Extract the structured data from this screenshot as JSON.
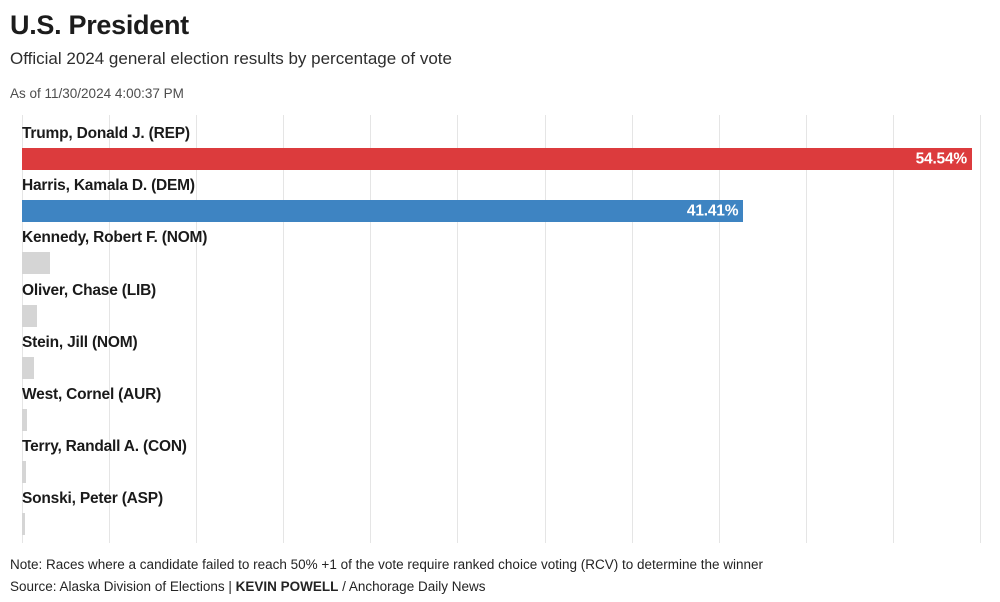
{
  "header": {
    "title": "U.S. President",
    "subtitle": "Official 2024 general election results by percentage of vote",
    "timestamp": "As of 11/30/2024 4:00:37 PM"
  },
  "chart_data": {
    "type": "bar",
    "orientation": "horizontal",
    "title": "U.S. President",
    "subtitle": "Official 2024 general election results by percentage of vote",
    "axis_max": 55,
    "gridline_interval": 5,
    "grid": "vertical-lines-on",
    "legend": "none",
    "categories": [
      "Trump, Donald J. (REP)",
      "Harris, Kamala D. (DEM)",
      "Kennedy, Robert F. (NOM)",
      "Oliver, Chase (LIB)",
      "Stein, Jill (NOM)",
      "West, Cornel (AUR)",
      "Terry, Randall A. (CON)",
      "Sonski, Peter (ASP)"
    ],
    "values": [
      54.54,
      41.41,
      1.6,
      0.86,
      0.67,
      0.27,
      0.21,
      0.17
    ],
    "bar_labels": [
      "54.54%",
      "41.41%",
      "",
      "",
      "",
      "",
      "",
      ""
    ],
    "colors": [
      "#dc3b3d",
      "#3e84c2",
      "#d5d5d5",
      "#d5d5d5",
      "#d5d5d5",
      "#d5d5d5",
      "#d5d5d5",
      "#d5d5d5"
    ]
  },
  "footer": {
    "note": "Note: Races where a candidate failed to reach 50% +1 of the vote require ranked choice voting (RCV) to determine the winner",
    "source_prefix": "Source: Alaska Division of Elections | ",
    "source_author": "KEVIN POWELL",
    "source_suffix": " / Anchorage Daily News"
  }
}
